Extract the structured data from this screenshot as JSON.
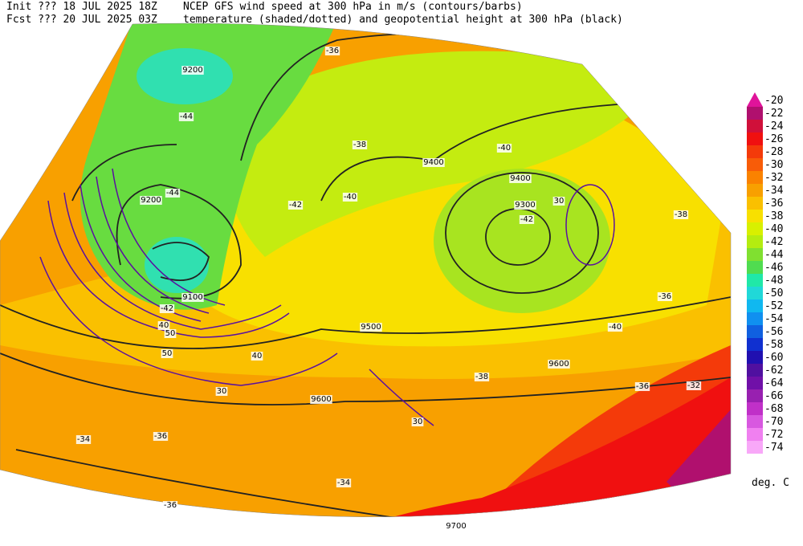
{
  "header": {
    "init": "Init  ??? 18 JUL 2025 18Z",
    "fcst": "Fcst ??? 20 JUL 2025 03Z",
    "title1": "NCEP GFS wind speed at 300 hPa in m/s (contours/barbs)",
    "title2": "temperature (shaded/dotted) and geopotential height at 300 hPa (black)"
  },
  "colorbar": {
    "levels": [
      -20,
      -22,
      -24,
      -26,
      -28,
      -30,
      -32,
      -34,
      -36,
      -38,
      -40,
      -42,
      -44,
      -46,
      -48,
      -50,
      -52,
      -54,
      -56,
      -58,
      -60,
      -62,
      -64,
      -66,
      -68,
      -70,
      -72,
      -74
    ],
    "colors": [
      "#e0139a",
      "#b0106e",
      "#d0103a",
      "#f01010",
      "#f43a0a",
      "#f85c08",
      "#fa8200",
      "#f8a000",
      "#fac000",
      "#f8e000",
      "#d8f000",
      "#b4ec10",
      "#80e030",
      "#50dc50",
      "#20e8a8",
      "#20d8d8",
      "#10b8f0",
      "#1090f0",
      "#1060e0",
      "#1030d0",
      "#2010b0",
      "#5010a0",
      "#7010a8",
      "#9820b0",
      "#c030c8",
      "#d858e0",
      "#f080f0",
      "#f8a8f8"
    ],
    "unit": "deg. C"
  },
  "map": {
    "labels": [
      "9200",
      "-44",
      "-44",
      "9200",
      "-42",
      "9100",
      "-42",
      "40",
      "50",
      "9400",
      "9400",
      "9300",
      "-40",
      "-42",
      "9500",
      "9600",
      "9600",
      "30",
      "30",
      "-38",
      "-36",
      "-36",
      "-40",
      "-34",
      "-36",
      "-34",
      "-36",
      "9700",
      "-36",
      "-38",
      "-40",
      "30",
      "40",
      "50",
      "-38",
      "-32"
    ]
  }
}
